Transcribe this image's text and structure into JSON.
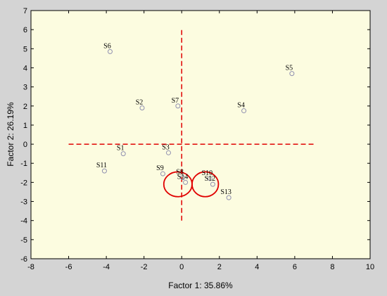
{
  "chart_data": {
    "type": "scatter",
    "title": "",
    "xlabel": "Factor 1: 35.86%",
    "ylabel": "Factor 2: 26.19%",
    "xlim": [
      -8,
      10
    ],
    "ylim": [
      -6,
      7
    ],
    "xticks": [
      -8,
      -6,
      -4,
      -2,
      0,
      2,
      4,
      6,
      8,
      10
    ],
    "yticks": [
      -6,
      -5,
      -4,
      -3,
      -2,
      -1,
      0,
      1,
      2,
      3,
      4,
      5,
      6,
      7
    ],
    "grid": false,
    "colors": {
      "plot_background": "#fcfce0",
      "frame_background": "#d4d4d4",
      "marker": "#9090b0",
      "annotation": "#e00000"
    },
    "points": [
      {
        "label": "S1",
        "x": -3.1,
        "y": -0.5
      },
      {
        "label": "S2",
        "x": -2.1,
        "y": 1.9
      },
      {
        "label": "S3",
        "x": -0.7,
        "y": -0.45
      },
      {
        "label": "S4",
        "x": 3.3,
        "y": 1.75
      },
      {
        "label": "S5",
        "x": 5.85,
        "y": 3.7
      },
      {
        "label": "S6",
        "x": -3.8,
        "y": 4.85
      },
      {
        "label": "S7",
        "x": -0.2,
        "y": 2.0
      },
      {
        "label": "S8",
        "x": 0.05,
        "y": -1.75
      },
      {
        "label": "S9",
        "x": -1.0,
        "y": -1.55
      },
      {
        "label": "S10",
        "x": 1.5,
        "y": -1.8
      },
      {
        "label": "S11",
        "x": -4.1,
        "y": -1.4
      },
      {
        "label": "S12",
        "x": 1.65,
        "y": -2.1
      },
      {
        "label": "S13",
        "x": 2.5,
        "y": -2.8
      },
      {
        "label": "S14",
        "x": 0.2,
        "y": -2.0
      }
    ],
    "reference_lines": {
      "horizontal": {
        "y": 0,
        "x_from": -6,
        "x_to": 7
      },
      "vertical": {
        "x": 0,
        "y_from": -4,
        "y_to": 6
      }
    },
    "circles": [
      {
        "cx": -0.2,
        "cy": -2.1,
        "rx": 0.75,
        "ry": 0.65
      },
      {
        "cx": 1.25,
        "cy": -2.1,
        "rx": 0.7,
        "ry": 0.65
      }
    ]
  }
}
